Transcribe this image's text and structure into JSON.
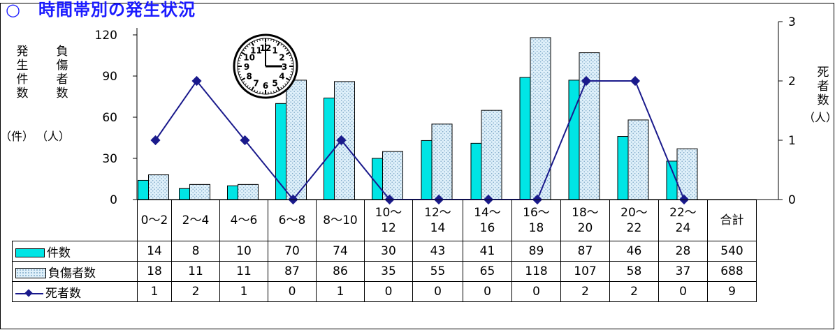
{
  "title": "○　時間帯別の発生状況",
  "left_axis_label_1": "発生件数",
  "left_axis_label_2": "負傷者数",
  "left_unit_1": "（件）",
  "left_unit_2": "（人）",
  "right_axis_label": "死者数",
  "right_unit": "（人）",
  "table": {
    "total_label": "合計",
    "col_top": [
      "0〜2",
      "2〜4",
      "4〜6",
      "6〜8",
      "8〜10",
      "10〜",
      "12〜",
      "14〜",
      "16〜",
      "18〜",
      "20〜",
      "22〜"
    ],
    "col_bottom": [
      "",
      "",
      "",
      "",
      "",
      "12",
      "14",
      "16",
      "18",
      "20",
      "22",
      "24"
    ],
    "rows": [
      {
        "label": "件数",
        "values": [
          "14",
          "8",
          "10",
          "70",
          "74",
          "30",
          "43",
          "41",
          "89",
          "87",
          "46",
          "28"
        ],
        "total": "540"
      },
      {
        "label": "負傷者数",
        "values": [
          "18",
          "11",
          "11",
          "87",
          "86",
          "35",
          "55",
          "65",
          "118",
          "107",
          "58",
          "37"
        ],
        "total": "688"
      },
      {
        "label": "死者数",
        "values": [
          "1",
          "2",
          "1",
          "0",
          "1",
          "0",
          "0",
          "0",
          "0",
          "2",
          "2",
          "0"
        ],
        "total": "9"
      }
    ]
  },
  "colors": {
    "incidents": "#00e5e5",
    "injured": "#dff0fa",
    "injured_dots": "#7fa9c8",
    "deaths": "#1a1a8c"
  },
  "icon": "clock-icon",
  "clock": {
    "numerals": [
      "12",
      "1",
      "2",
      "3",
      "4",
      "5",
      "6",
      "7",
      "8",
      "9",
      "10",
      "11"
    ]
  },
  "chart_data": {
    "type": "bar",
    "categories": [
      "0〜2",
      "2〜4",
      "4〜6",
      "6〜8",
      "8〜10",
      "10〜12",
      "12〜14",
      "14〜16",
      "16〜18",
      "18〜20",
      "20〜22",
      "22〜24"
    ],
    "series": [
      {
        "name": "件数",
        "type": "bar",
        "axis": "left",
        "values": [
          14,
          8,
          10,
          70,
          74,
          30,
          43,
          41,
          89,
          87,
          46,
          28
        ]
      },
      {
        "name": "負傷者数",
        "type": "bar",
        "axis": "left",
        "values": [
          18,
          11,
          11,
          87,
          86,
          35,
          55,
          65,
          118,
          107,
          58,
          37
        ]
      },
      {
        "name": "死者数",
        "type": "line",
        "axis": "right",
        "values": [
          1,
          2,
          1,
          0,
          1,
          0,
          0,
          0,
          0,
          2,
          2,
          0
        ]
      }
    ],
    "y_left": {
      "ticks": [
        "0",
        "30",
        "60",
        "90",
        "120"
      ],
      "range": [
        0,
        120
      ]
    },
    "y_right": {
      "ticks": [
        "0",
        "1",
        "2",
        "3"
      ],
      "range": [
        0,
        3
      ]
    },
    "legend": "table",
    "grid": false
  }
}
